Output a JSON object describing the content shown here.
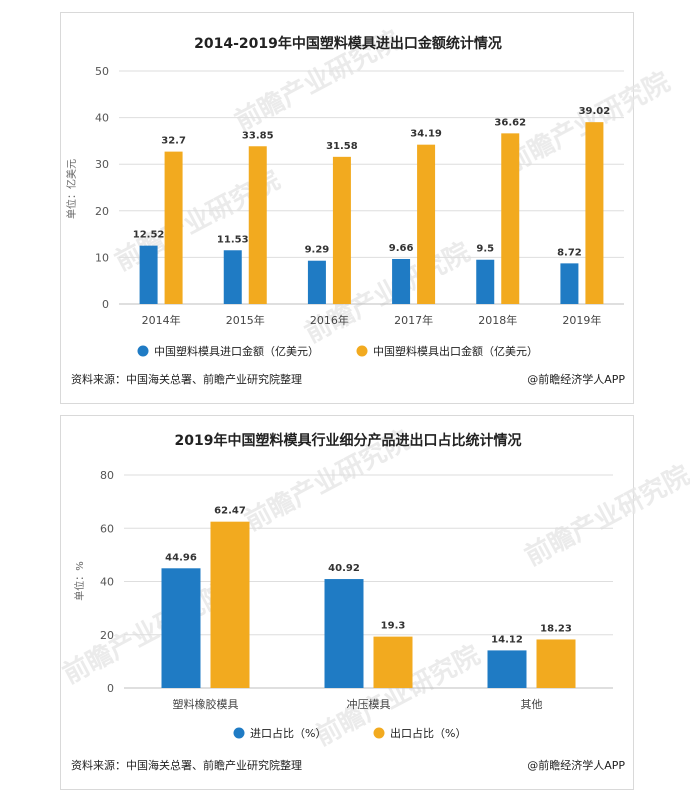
{
  "chart_data": [
    {
      "type": "bar",
      "title": "2014-2019年中国塑料模具进出口金额统计情况",
      "ylabel": "单位：亿美元",
      "ylim": [
        0,
        50
      ],
      "yticks": [
        0,
        10,
        20,
        30,
        40,
        50
      ],
      "categories": [
        "2014年",
        "2015年",
        "2016年",
        "2017年",
        "2018年",
        "2019年"
      ],
      "series": [
        {
          "name": "中国塑料模具进口金额（亿美元）",
          "color": "#1f7bc4",
          "values": [
            12.52,
            11.53,
            9.29,
            9.66,
            9.5,
            8.72
          ]
        },
        {
          "name": "中国塑料模具出口金额（亿美元）",
          "color": "#f2aa1f",
          "values": [
            32.7,
            33.85,
            31.58,
            34.19,
            36.62,
            39.02
          ]
        }
      ],
      "grid": true,
      "legend": "bottom",
      "source": "资料来源：中国海关总署、前瞻产业研究院整理",
      "credit": "@前瞻经济学人APP",
      "watermark": "前瞻产业研究院"
    },
    {
      "type": "bar",
      "title": "2019年中国塑料模具行业细分产品进出口占比统计情况",
      "ylabel": "单位：%",
      "ylim": [
        0,
        80
      ],
      "yticks": [
        0,
        20,
        40,
        60,
        80
      ],
      "categories": [
        "塑料橡胶模具",
        "冲压模具",
        "其他"
      ],
      "series": [
        {
          "name": "进口占比（%）",
          "color": "#1f7bc4",
          "values": [
            44.96,
            40.92,
            14.12
          ]
        },
        {
          "name": "出口占比（%）",
          "color": "#f2aa1f",
          "values": [
            62.47,
            19.3,
            18.23
          ]
        }
      ],
      "grid": true,
      "legend": "bottom",
      "source": "资料来源：中国海关总署、前瞻产业研究院整理",
      "credit": "@前瞻经济学人APP",
      "watermark": "前瞻产业研究院"
    }
  ]
}
